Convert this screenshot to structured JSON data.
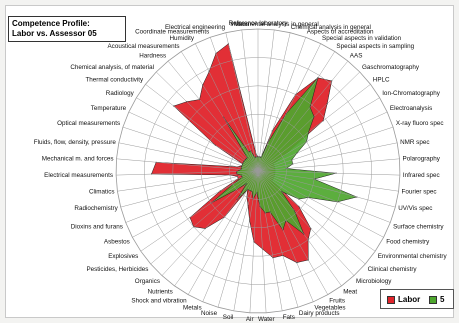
{
  "title": {
    "line1": "Competence Profile:",
    "line2": "Labor vs. Assessor 05"
  },
  "colors": {
    "labor": "#e0242b",
    "assessor": "#4ea72e",
    "grid": "#9a9a9a",
    "outline": "#1d1d1d"
  },
  "chart_data": {
    "type": "radar",
    "rlim": [
      0,
      100
    ],
    "grid_levels": [
      20,
      40,
      60,
      80,
      100
    ],
    "axes": [
      "Reference laboratory",
      "Instrumental analysis in general",
      "Chemical analysis in general",
      "Aspects of accreditation",
      "Special aspects in validation",
      "Special aspects in sampling",
      "AAS",
      "Gaschromatography",
      "HPLC",
      "Ion-Chromatography",
      "Electroanalysis",
      "X-ray fluoro spec",
      "NMR spec",
      "Polarography",
      "Infrared spec",
      "Fourier spec",
      "UV/Vis spec",
      "Surface chemistry",
      "Food chemistry",
      "Environmental chemistry",
      "Clinical chemistry",
      "Microbiology",
      "Meat",
      "Fruits",
      "Vegetables",
      "Dairy products",
      "Fats",
      "Water",
      "Air",
      "Soil",
      "Noise",
      "Metals",
      "Shock and vibration",
      "Nutrients",
      "Organics",
      "Pesticides, Herbicides",
      "Explosives",
      "Asbestos",
      "Dioxins and furans",
      "Radiochemistry",
      "Climatics",
      "Electrical measurements",
      "Mechanical m. and forces",
      "Fluids, flow, density, pressure",
      "Optical measurements",
      "Temperature",
      "Radiology",
      "Thermal conductivity",
      "Chemical analysis, of material",
      "Hardness",
      "Acoustical measurements",
      "Humidity",
      "Coordinate measurements",
      "Electrical engineering",
      "Mass"
    ],
    "series": [
      {
        "name": "Labor",
        "values": [
          10,
          10,
          10,
          30,
          60,
          78,
          82,
          68,
          58,
          22,
          12,
          12,
          12,
          12,
          12,
          12,
          12,
          12,
          12,
          12,
          38,
          55,
          60,
          72,
          70,
          62,
          62,
          55,
          50,
          35,
          25,
          20,
          15,
          40,
          55,
          60,
          58,
          30,
          15,
          15,
          20,
          75,
          72,
          15,
          12,
          12,
          35,
          75,
          70,
          65,
          72,
          78,
          88,
          92,
          12
        ]
      },
      {
        "name": "5",
        "values": [
          10,
          10,
          10,
          22,
          45,
          78,
          58,
          55,
          45,
          40,
          30,
          25,
          25,
          20,
          55,
          40,
          72,
          60,
          40,
          35,
          22,
          38,
          55,
          40,
          45,
          30,
          30,
          25,
          15,
          20,
          15,
          15,
          15,
          25,
          12,
          20,
          40,
          20,
          12,
          12,
          15,
          15,
          12,
          12,
          12,
          12,
          12,
          12,
          12,
          12,
          45,
          15,
          15,
          10,
          10
        ]
      }
    ]
  }
}
